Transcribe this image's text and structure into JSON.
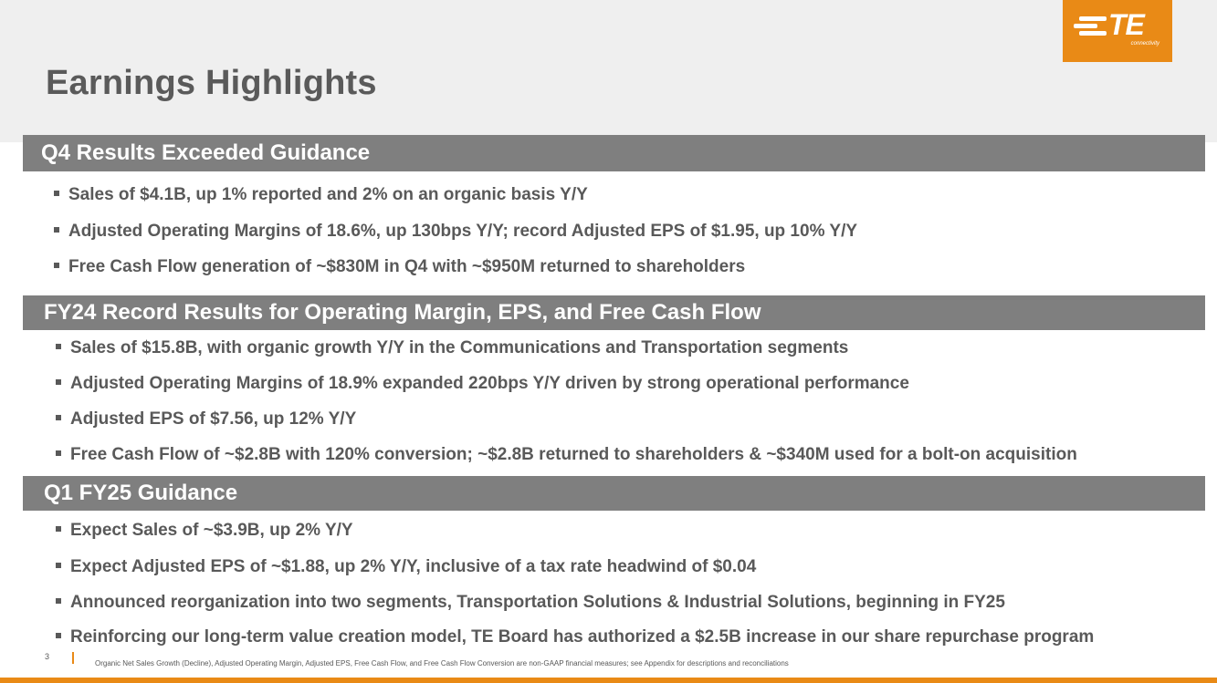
{
  "page": {
    "title": "Earnings Highlights"
  },
  "logo": {
    "mark_text": "TE",
    "tagline": "connectivity"
  },
  "sections": [
    {
      "heading": "Q4 Results Exceeded Guidance",
      "bullets": [
        "Sales of $4.1B, up 1% reported and 2% on an organic basis Y/Y",
        "Adjusted Operating Margins of 18.6%, up 130bps Y/Y; record Adjusted EPS of $1.95, up 10% Y/Y",
        "Free Cash Flow generation of ~$830M in Q4 with ~$950M returned to shareholders"
      ]
    },
    {
      "heading": "FY24 Record Results for Operating Margin, EPS, and Free Cash Flow",
      "bullets": [
        "Sales of $15.8B, with organic growth Y/Y in the Communications and Transportation segments",
        "Adjusted Operating Margins of 18.9% expanded 220bps Y/Y driven by strong operational performance",
        "Adjusted EPS of $7.56, up 12% Y/Y",
        "Free Cash Flow of ~$2.8B with 120% conversion; ~$2.8B returned to shareholders & ~$340M used for a bolt-on acquisition"
      ]
    },
    {
      "heading": "Q1 FY25 Guidance",
      "bullets": [
        "Expect Sales of ~$3.9B, up 2% Y/Y",
        "Expect Adjusted EPS of ~$1.88, up 2% Y/Y, inclusive of a tax rate headwind of $0.04",
        "Announced reorganization into two segments, Transportation Solutions & Industrial Solutions, beginning in FY25",
        "Reinforcing our long-term value creation model, TE Board has authorized a $2.5B increase in our share repurchase program"
      ]
    }
  ],
  "footer": {
    "page_number": "3",
    "footnote": "Organic Net Sales Growth (Decline), Adjusted Operating Margin, Adjusted EPS, Free Cash Flow, and Free Cash Flow Conversion are non-GAAP financial measures; see Appendix for descriptions and reconciliations"
  },
  "colors": {
    "brand_orange": "#e98a16",
    "section_bar_gray": "#7f7f7f",
    "text_gray": "#595959",
    "header_band": "#efefef"
  }
}
